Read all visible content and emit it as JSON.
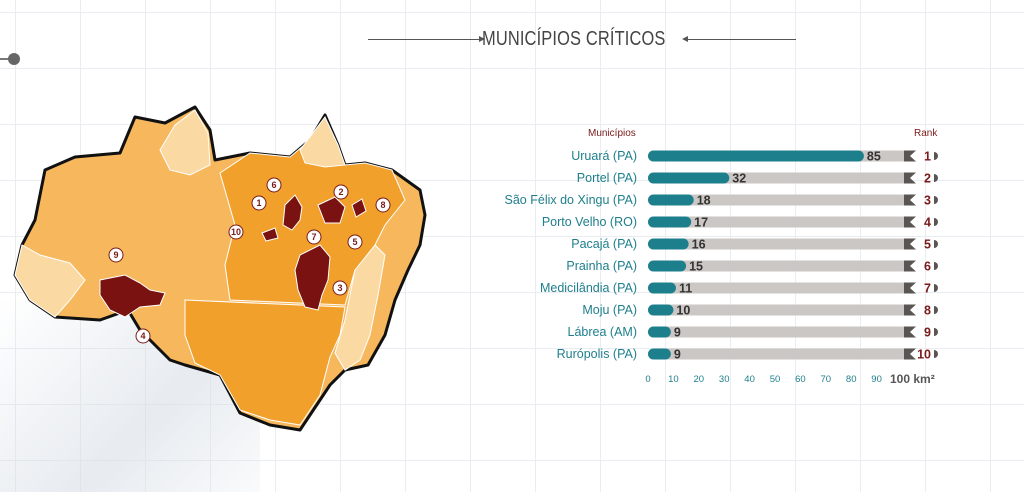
{
  "title": "MUNICÍPIOS CRÍTICOS",
  "map": {
    "pins": [
      "1",
      "2",
      "3",
      "4",
      "5",
      "6",
      "7",
      "8",
      "9",
      "10"
    ]
  },
  "chart_data": {
    "type": "bar",
    "title": "MUNICÍPIOS CRÍTICOS",
    "category_header": "Municípios",
    "rank_header": "Rank",
    "xlabel": "100 km²",
    "xlim": [
      0,
      105
    ],
    "x_ticks": [
      "0",
      "10",
      "20",
      "30",
      "40",
      "50",
      "60",
      "70",
      "80",
      "90"
    ],
    "categories": [
      "Uruará (PA)",
      "Portel (PA)",
      "São Félix do Xingu (PA)",
      "Porto Velho (RO)",
      "Pacajá (PA)",
      "Prainha (PA)",
      "Medicilândia (PA)",
      "Moju (PA)",
      "Lábrea (AM)",
      "Rurópolis (PA)"
    ],
    "values": [
      85,
      32,
      18,
      17,
      16,
      15,
      11,
      10,
      9,
      9
    ],
    "ranks": [
      "1",
      "2",
      "3",
      "4",
      "5",
      "6",
      "7",
      "8",
      "9",
      "10"
    ],
    "colors": {
      "bar": "#1e7f8c",
      "track": "#cbc7c4",
      "label": "#1e7f8c",
      "rank": "#7a1a1a",
      "critical": "#7a1212",
      "map_light": "#f7b85d",
      "map_mid": "#f0a02b",
      "map_pale": "#fbd9a3"
    }
  }
}
